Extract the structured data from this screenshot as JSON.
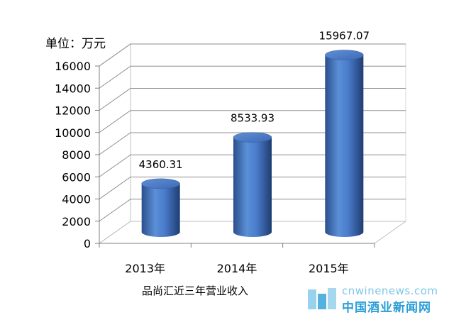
{
  "chart_data": {
    "type": "bar",
    "categories": [
      "2013年",
      "2014年",
      "2015年"
    ],
    "values": [
      4360.31,
      8533.93,
      15967.07
    ],
    "value_labels": [
      "4360.31",
      "8533.93",
      "15967.07"
    ],
    "ylabel": "单位：万元",
    "xlabel": "品尚汇近三年营业收入",
    "ylim": [
      0,
      16000
    ],
    "yticks": [
      0,
      2000,
      4000,
      6000,
      8000,
      10000,
      12000,
      14000,
      16000
    ],
    "grid": true,
    "style": "3d-cylinder",
    "bar_color": "#4472c4"
  },
  "watermark": {
    "url": "cnwinenews.com",
    "name": "中国酒业新闻网",
    "color": "#2b9ed6"
  }
}
